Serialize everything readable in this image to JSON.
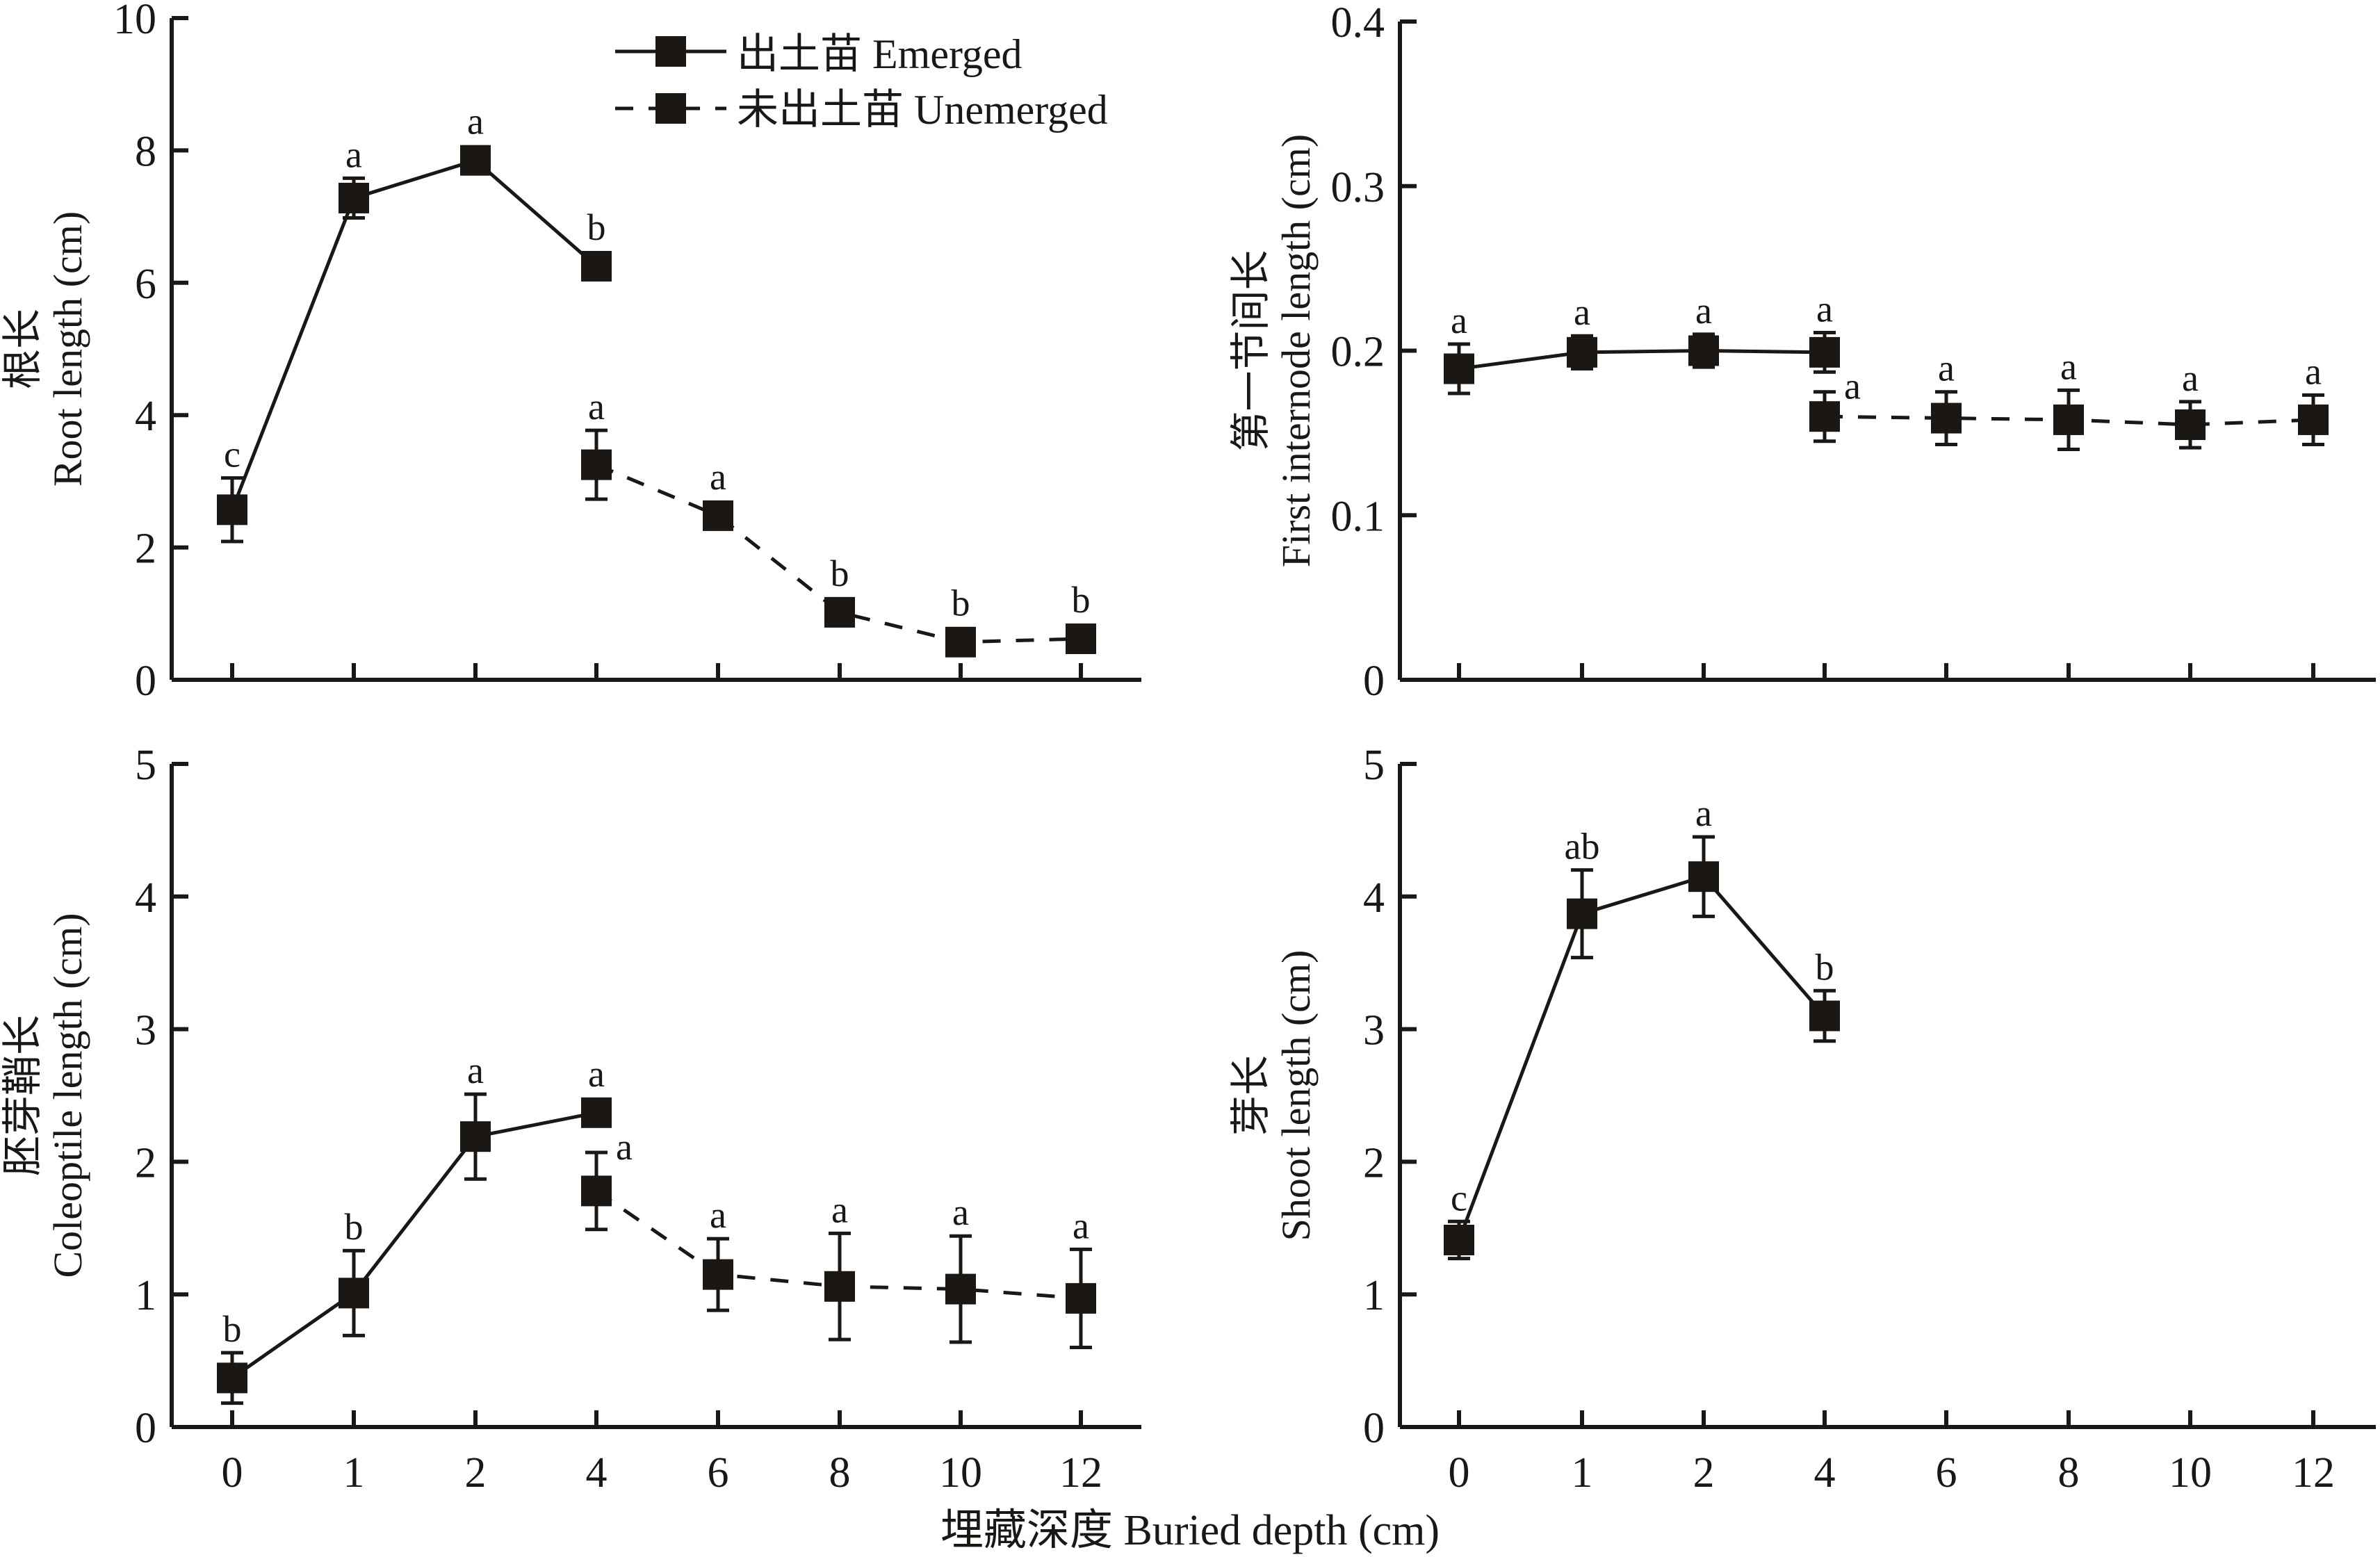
{
  "chart_data": [
    {
      "type": "line",
      "panel": "top-left",
      "title": "",
      "ylabel_cn": "根长",
      "ylabel_en": "Root length (cm)",
      "xlabel": "",
      "categories": [
        "0",
        "1",
        "2",
        "4",
        "6",
        "8",
        "10",
        "12"
      ],
      "ylim": [
        0,
        10
      ],
      "yticks": [
        "0",
        "2",
        "4",
        "6",
        "8",
        "10"
      ],
      "show_xtick_labels": false,
      "legend": "top-center",
      "series": [
        {
          "name": "出土苗 Emerged",
          "style": "solid",
          "x": [
            "0",
            "1",
            "2",
            "4"
          ],
          "values": [
            2.57,
            7.28,
            7.85,
            6.25
          ],
          "errors": [
            0.48,
            0.3,
            0.15,
            0.2
          ],
          "labels": [
            "c",
            "a",
            "a",
            "b"
          ]
        },
        {
          "name": "未出土苗 Unemerged",
          "style": "dashed",
          "x": [
            "4",
            "6",
            "8",
            "10",
            "12"
          ],
          "values": [
            3.25,
            2.48,
            1.02,
            0.57,
            0.62
          ],
          "errors": [
            0.52,
            0.12,
            0.08,
            0.1,
            0.15
          ],
          "labels": [
            "a",
            "a",
            "b",
            "b",
            "b"
          ]
        }
      ]
    },
    {
      "type": "line",
      "panel": "top-right",
      "title": "",
      "ylabel_cn": "第一节间长",
      "ylabel_en": "First internode length (cm)",
      "xlabel": "",
      "categories": [
        "0",
        "1",
        "2",
        "4",
        "6",
        "8",
        "10",
        "12"
      ],
      "ylim": [
        0,
        0.4
      ],
      "yticks": [
        "0",
        "0.1",
        "0.2",
        "0.3",
        "0.4"
      ],
      "show_xtick_labels": false,
      "series": [
        {
          "name": "出土苗 Emerged",
          "style": "solid",
          "x": [
            "0",
            "1",
            "2",
            "4"
          ],
          "values": [
            0.189,
            0.199,
            0.2,
            0.199
          ],
          "errors": [
            0.015,
            0.01,
            0.01,
            0.012
          ],
          "labels": [
            "a",
            "a",
            "a",
            "a"
          ]
        },
        {
          "name": "未出土苗 Unemerged",
          "style": "dashed",
          "x": [
            "4",
            "6",
            "8",
            "10",
            "12"
          ],
          "values": [
            0.16,
            0.159,
            0.158,
            0.155,
            0.158
          ],
          "errors": [
            0.015,
            0.016,
            0.018,
            0.014,
            0.015
          ],
          "labels": [
            "a",
            "a",
            "a",
            "a",
            "a"
          ]
        }
      ]
    },
    {
      "type": "line",
      "panel": "bottom-left",
      "title": "",
      "ylabel_cn": "胚芽鞘长",
      "ylabel_en": "Coleoptile length (cm)",
      "xlabel": "",
      "categories": [
        "0",
        "1",
        "2",
        "4",
        "6",
        "8",
        "10",
        "12"
      ],
      "ylim": [
        0,
        5
      ],
      "yticks": [
        "0",
        "1",
        "2",
        "3",
        "4",
        "5"
      ],
      "show_xtick_labels": true,
      "series": [
        {
          "name": "出土苗 Emerged",
          "style": "solid",
          "x": [
            "0",
            "1",
            "2",
            "4"
          ],
          "values": [
            0.37,
            1.01,
            2.19,
            2.37
          ],
          "errors": [
            0.19,
            0.32,
            0.32,
            0.05
          ],
          "labels": [
            "b",
            "b",
            "a",
            "a"
          ]
        },
        {
          "name": "未出土苗 Unemerged",
          "style": "dashed",
          "x": [
            "4",
            "6",
            "8",
            "10",
            "12"
          ],
          "values": [
            1.78,
            1.15,
            1.06,
            1.04,
            0.97
          ],
          "errors": [
            0.29,
            0.27,
            0.4,
            0.4,
            0.37
          ],
          "labels": [
            "a",
            "a",
            "a",
            "a",
            "a"
          ]
        }
      ]
    },
    {
      "type": "line",
      "panel": "bottom-right",
      "title": "",
      "ylabel_cn": "芽长",
      "ylabel_en": "Shoot length (cm)",
      "xlabel": "",
      "categories": [
        "0",
        "1",
        "2",
        "4",
        "6",
        "8",
        "10",
        "12"
      ],
      "ylim": [
        0,
        5
      ],
      "yticks": [
        "0",
        "1",
        "2",
        "3",
        "4",
        "5"
      ],
      "show_xtick_labels": true,
      "series": [
        {
          "name": "出土苗 Emerged",
          "style": "solid",
          "x": [
            "0",
            "1",
            "2",
            "4"
          ],
          "values": [
            1.41,
            3.87,
            4.15,
            3.1
          ],
          "errors": [
            0.14,
            0.33,
            0.3,
            0.19
          ],
          "labels": [
            "c",
            "ab",
            "a",
            "b"
          ]
        }
      ]
    }
  ],
  "legend": {
    "items": [
      {
        "label": "出土苗 Emerged",
        "style": "solid"
      },
      {
        "label": "未出土苗 Unemerged",
        "style": "dashed"
      }
    ]
  },
  "shared_xlabel": "埋藏深度 Buried depth (cm)"
}
